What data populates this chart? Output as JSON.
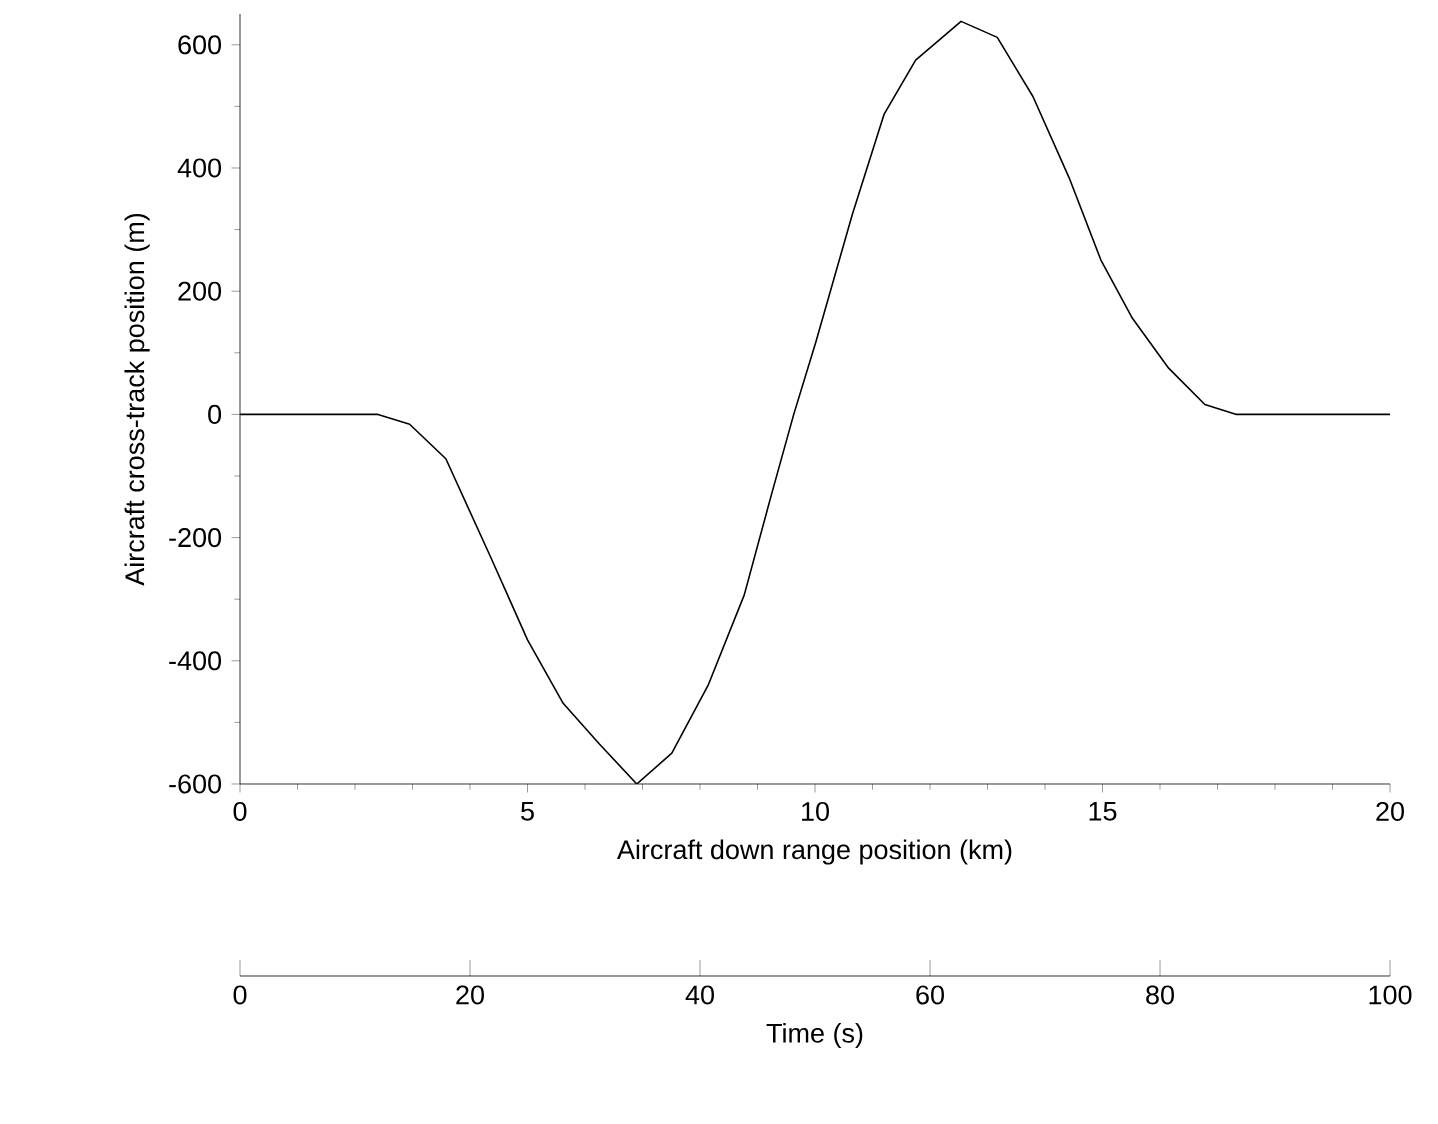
{
  "chart_data": {
    "type": "line",
    "xlabel": "Aircraft down range position (km)",
    "ylabel": "Aircraft cross-track position (m)",
    "x": [
      0,
      2.4,
      2.95,
      3.58,
      4.37,
      5.0,
      5.62,
      6.25,
      6.9,
      7.51,
      8.14,
      8.77,
      9.24,
      9.63,
      10.02,
      10.65,
      11.2,
      11.75,
      12.54,
      13.17,
      13.79,
      14.42,
      14.97,
      15.52,
      16.15,
      16.78,
      17.33,
      20
    ],
    "series": [
      {
        "color": "#000000",
        "values": [
          0,
          0,
          -16,
          -72,
          -234,
          -366,
          -469,
          -535,
          -600,
          -550,
          -440,
          -293,
          -131,
          0,
          119,
          325,
          487,
          575,
          638,
          612,
          516,
          384,
          251,
          156,
          75,
          16,
          0,
          0
        ]
      }
    ],
    "xlim": [
      0,
      20
    ],
    "xticks": [
      0,
      5,
      10,
      15,
      20
    ],
    "ylim": [
      -600,
      650
    ],
    "yticks": [
      -600,
      -400,
      -200,
      0,
      200,
      400,
      600
    ],
    "x2lim": [
      0,
      100
    ],
    "x2ticks": [
      0,
      20,
      40,
      60,
      80,
      100
    ],
    "x2label": "Time (s)"
  }
}
